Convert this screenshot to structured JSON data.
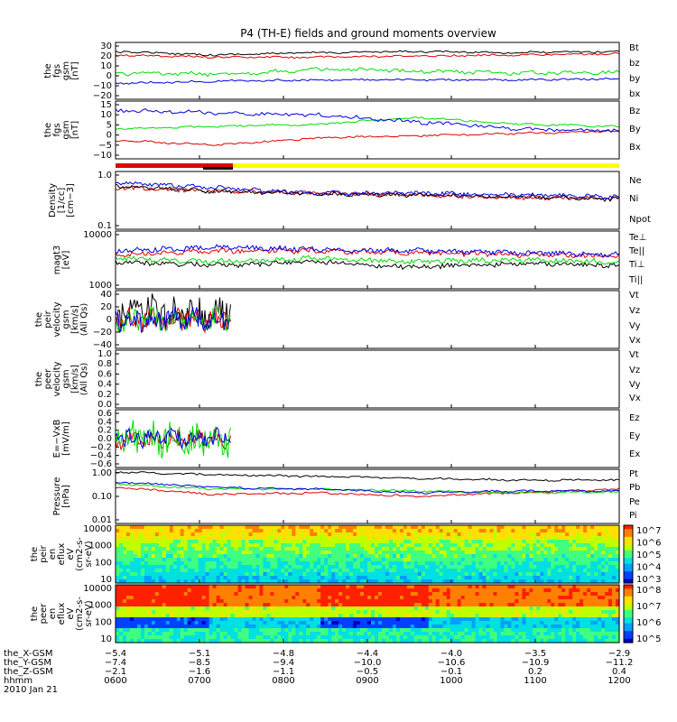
{
  "title": "P4 (TH-E) fields and ground moments overview",
  "colors": {
    "black": "#000000",
    "red": "#e00000",
    "green": "#00dd00",
    "blue": "#0000e0",
    "yellow": "#ffff00"
  },
  "chart_data": [
    {
      "type": "line",
      "id": "fgs_gsm",
      "ylabel": [
        "the",
        "fgs",
        "gsm",
        "[nT]"
      ],
      "yticks": [
        "30",
        "20",
        "10",
        "0",
        "−10",
        "−20"
      ],
      "series": [
        {
          "name": "Bt",
          "color": "black",
          "levels": [
            22,
            19,
            21,
            22,
            21,
            22
          ]
        },
        {
          "name": "bz",
          "color": "red",
          "levels": [
            19,
            17,
            17,
            18,
            19,
            20
          ]
        },
        {
          "name": "by",
          "color": "green",
          "levels": [
            3,
            2,
            6,
            5,
            3,
            4
          ]
        },
        {
          "name": "bx",
          "color": "blue",
          "levels": [
            -6,
            -4,
            -3,
            -3,
            -3,
            -2
          ]
        }
      ]
    },
    {
      "type": "line",
      "id": "fgs_dsl",
      "ylabel": [
        "the",
        "fgs",
        "gsm",
        "[nT]"
      ],
      "yticks": [
        "15",
        "10",
        "5",
        "0",
        "−5",
        "−10"
      ],
      "series": [
        {
          "name": "Bz",
          "color": "red",
          "levels": [
            -2,
            -4,
            -1,
            0,
            1,
            2
          ]
        },
        {
          "name": "By",
          "color": "green",
          "levels": [
            3,
            4,
            5,
            8,
            5,
            4
          ]
        },
        {
          "name": "Bx",
          "color": "blue",
          "levels": [
            11,
            10,
            9,
            6,
            3,
            2
          ]
        }
      ]
    },
    {
      "type": "line",
      "id": "density",
      "ylabel": [
        "Density",
        "[1/cc]",
        "[cm−3]"
      ],
      "yticks": [
        "1.0",
        "0.1"
      ],
      "series": [
        {
          "name": "Ne",
          "color": "red"
        },
        {
          "name": "Ni",
          "color": "black"
        },
        {
          "name": "Npot",
          "color": "blue"
        }
      ]
    },
    {
      "type": "line",
      "id": "temp",
      "ylabel": [
        "magt3",
        "[eV]"
      ],
      "yticks": [
        "10000",
        "1000"
      ],
      "series": [
        {
          "name": "Te⊥",
          "color": "red"
        },
        {
          "name": "Te||",
          "color": "black"
        },
        {
          "name": "Ti⊥",
          "color": "blue"
        },
        {
          "name": "Ti||",
          "color": "green"
        }
      ]
    },
    {
      "type": "line",
      "id": "peir_vel",
      "ylabel": [
        "the",
        "peir",
        "velocity",
        "gsm",
        "[km/s]",
        "(All Qs)"
      ],
      "yticks": [
        "40",
        "20",
        "0",
        "−20",
        "−40"
      ],
      "series": [
        {
          "name": "Vt",
          "color": "black"
        },
        {
          "name": "Vz",
          "color": "red"
        },
        {
          "name": "Vy",
          "color": "green"
        },
        {
          "name": "Vx",
          "color": "blue"
        }
      ]
    },
    {
      "type": "line",
      "id": "peer_vel",
      "ylabel": [
        "the",
        "peer",
        "velocity",
        "gsm",
        "[km/s]",
        "(All Qs)"
      ],
      "yticks": [
        "1.0",
        "0.8",
        "0.6",
        "0.4",
        "0.2",
        "0.0"
      ],
      "series": [
        {
          "name": "Vt",
          "color": "black"
        },
        {
          "name": "Vz",
          "color": "red"
        },
        {
          "name": "Vy",
          "color": "green"
        },
        {
          "name": "Vx",
          "color": "blue"
        }
      ]
    },
    {
      "type": "line",
      "id": "efield",
      "ylabel": [
        "E=−VxB",
        "[mV/m]"
      ],
      "yticks": [
        "0.6",
        "0.4",
        "0.2",
        "0.0",
        "−0.2",
        "−0.4",
        "−0.6"
      ],
      "series": [
        {
          "name": "Ez",
          "color": "red"
        },
        {
          "name": "Ey",
          "color": "green"
        },
        {
          "name": "Ex",
          "color": "blue"
        }
      ]
    },
    {
      "type": "line",
      "id": "pressure",
      "ylabel": [
        "Pressure",
        "[nPa]"
      ],
      "yticks": [
        "1.00",
        "0.10",
        "0.01"
      ],
      "series": [
        {
          "name": "Pt",
          "color": "black"
        },
        {
          "name": "Pb",
          "color": "red"
        },
        {
          "name": "Pe",
          "color": "green"
        },
        {
          "name": "Pi",
          "color": "blue"
        }
      ]
    },
    {
      "type": "heatmap",
      "id": "peir_spec",
      "ylabel": [
        "the",
        "peir",
        "en",
        "eflux",
        "eV",
        "(cm2-s-",
        "sr-eV)"
      ],
      "yticks": [
        "10000",
        "1000",
        "100",
        "10"
      ],
      "colorbar": [
        "10^7",
        "10^6",
        "10^5",
        "10^4",
        "10^3"
      ]
    },
    {
      "type": "heatmap",
      "id": "peer_spec",
      "ylabel": [
        "the",
        "peer",
        "en",
        "eflux",
        "eV",
        "(cm2-s-",
        "sr-eV)"
      ],
      "yticks": [
        "10000",
        "1000",
        "100",
        "10"
      ],
      "colorbar": [
        "10^8",
        "10^7",
        "10^6",
        "10^5"
      ]
    }
  ],
  "footer": {
    "labels": [
      "the_X-GSM",
      "the_Y-GSM",
      "the_Z-GSM",
      "hhmm",
      "2010 Jan 21"
    ],
    "rows": [
      [
        "−5.4",
        "−5.1",
        "−4.8",
        "−4.4",
        "−4.0",
        "−3.5",
        "−2.9"
      ],
      [
        "−7.4",
        "−8.5",
        "−9.4",
        "−10.0",
        "−10.6",
        "−10.9",
        "−11.2"
      ],
      [
        "−2.1",
        "−1.6",
        "−1.1",
        "−0.5",
        "−0.1",
        "0.2",
        "0.4"
      ],
      [
        "0600",
        "0700",
        "0800",
        "0900",
        "1000",
        "1100",
        "1200"
      ]
    ]
  }
}
